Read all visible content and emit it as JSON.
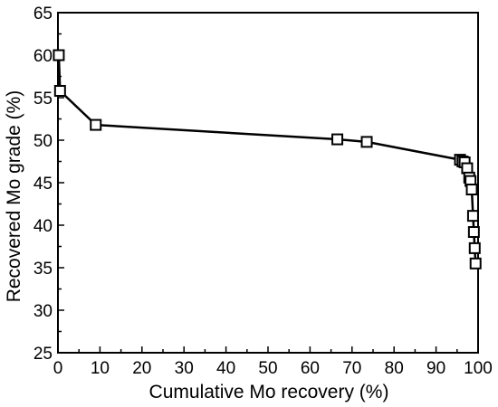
{
  "chart_data": {
    "type": "line",
    "title": "",
    "xlabel": "Cumulative Mo recovery (%)",
    "ylabel": "Recovered Mo grade (%)",
    "xlim": [
      0,
      100
    ],
    "ylim": [
      25,
      65
    ],
    "xticks": [
      0,
      10,
      20,
      30,
      40,
      50,
      60,
      70,
      80,
      90,
      100
    ],
    "yticks": [
      25,
      30,
      35,
      40,
      45,
      50,
      55,
      60,
      65
    ],
    "grid": false,
    "legend": "none",
    "marker": "open-square",
    "line_color": "#000000",
    "series": [
      {
        "points": [
          {
            "x": 0.2,
            "y": 60.0
          },
          {
            "x": 0.5,
            "y": 55.8
          },
          {
            "x": 9.0,
            "y": 51.8
          },
          {
            "x": 66.5,
            "y": 50.1
          },
          {
            "x": 73.5,
            "y": 49.8
          },
          {
            "x": 95.7,
            "y": 47.7
          },
          {
            "x": 96.3,
            "y": 47.5
          },
          {
            "x": 96.8,
            "y": 47.4
          },
          {
            "x": 97.4,
            "y": 46.7
          },
          {
            "x": 97.9,
            "y": 45.6
          },
          {
            "x": 98.2,
            "y": 45.2
          },
          {
            "x": 98.5,
            "y": 44.2
          },
          {
            "x": 98.8,
            "y": 41.1
          },
          {
            "x": 99.0,
            "y": 39.2
          },
          {
            "x": 99.2,
            "y": 37.3
          },
          {
            "x": 99.4,
            "y": 35.5
          }
        ]
      }
    ]
  }
}
